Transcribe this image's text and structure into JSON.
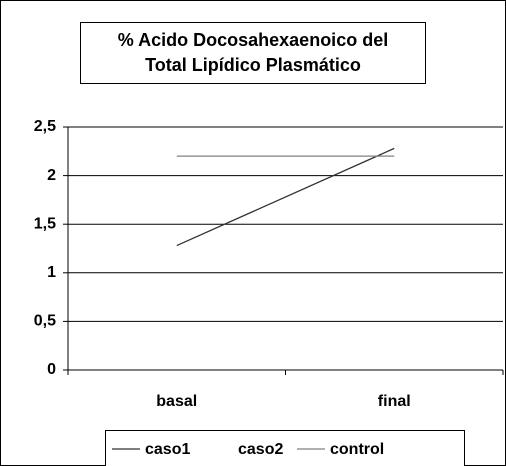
{
  "chart_data": {
    "type": "line",
    "title": [
      "% Acido Docosahexaenoico del",
      "Total Lipídico Plasmático"
    ],
    "categories": [
      "basal",
      "final"
    ],
    "series": [
      {
        "name": "caso1",
        "color": "#333333",
        "values": [
          1.28,
          2.28
        ]
      },
      {
        "name": "caso2",
        "values": [
          null,
          null
        ]
      },
      {
        "name": "control",
        "color": "#808080",
        "values": [
          2.2,
          2.2
        ]
      }
    ],
    "ylim": [
      0,
      2.5
    ],
    "yticks": [
      0,
      {
        "value": 0.5,
        "label": "0,5"
      },
      1,
      {
        "value": 1.5,
        "label": "1,5"
      },
      2,
      {
        "value": 2.5,
        "label": "2,5"
      }
    ],
    "grid": true,
    "legend": "bottom"
  }
}
